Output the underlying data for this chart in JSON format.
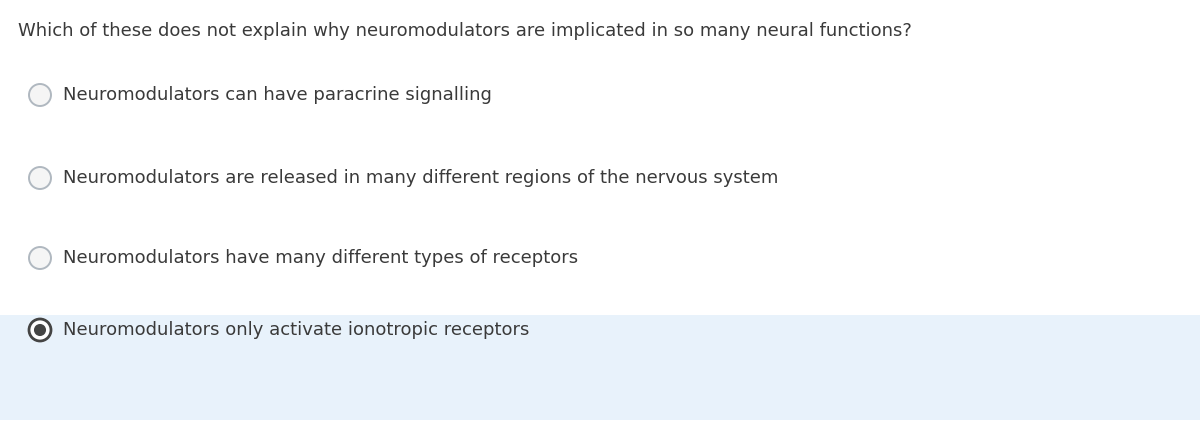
{
  "question": "Which of these does not explain why neuromodulators are implicated in so many neural functions?",
  "options": [
    "Neuromodulators can have paracrine signalling",
    "Neuromodulators are released in many different regions of the nervous system",
    "Neuromodulators have many different types of receptors",
    "Neuromodulators only activate ionotropic receptors"
  ],
  "selected_index": 3,
  "background_color": "#ffffff",
  "highlight_color": "#e8f2fb",
  "question_color": "#3a3a3a",
  "option_color": "#3a3a3a",
  "question_fontsize": 13.0,
  "option_fontsize": 13.0,
  "circle_edge_color_empty": "#b0b8c0",
  "circle_fill_empty": "#f5f5f5",
  "circle_edge_selected": "#444444",
  "circle_fill_selected": "#444444",
  "fig_width": 12.0,
  "fig_height": 4.25,
  "dpi": 100
}
